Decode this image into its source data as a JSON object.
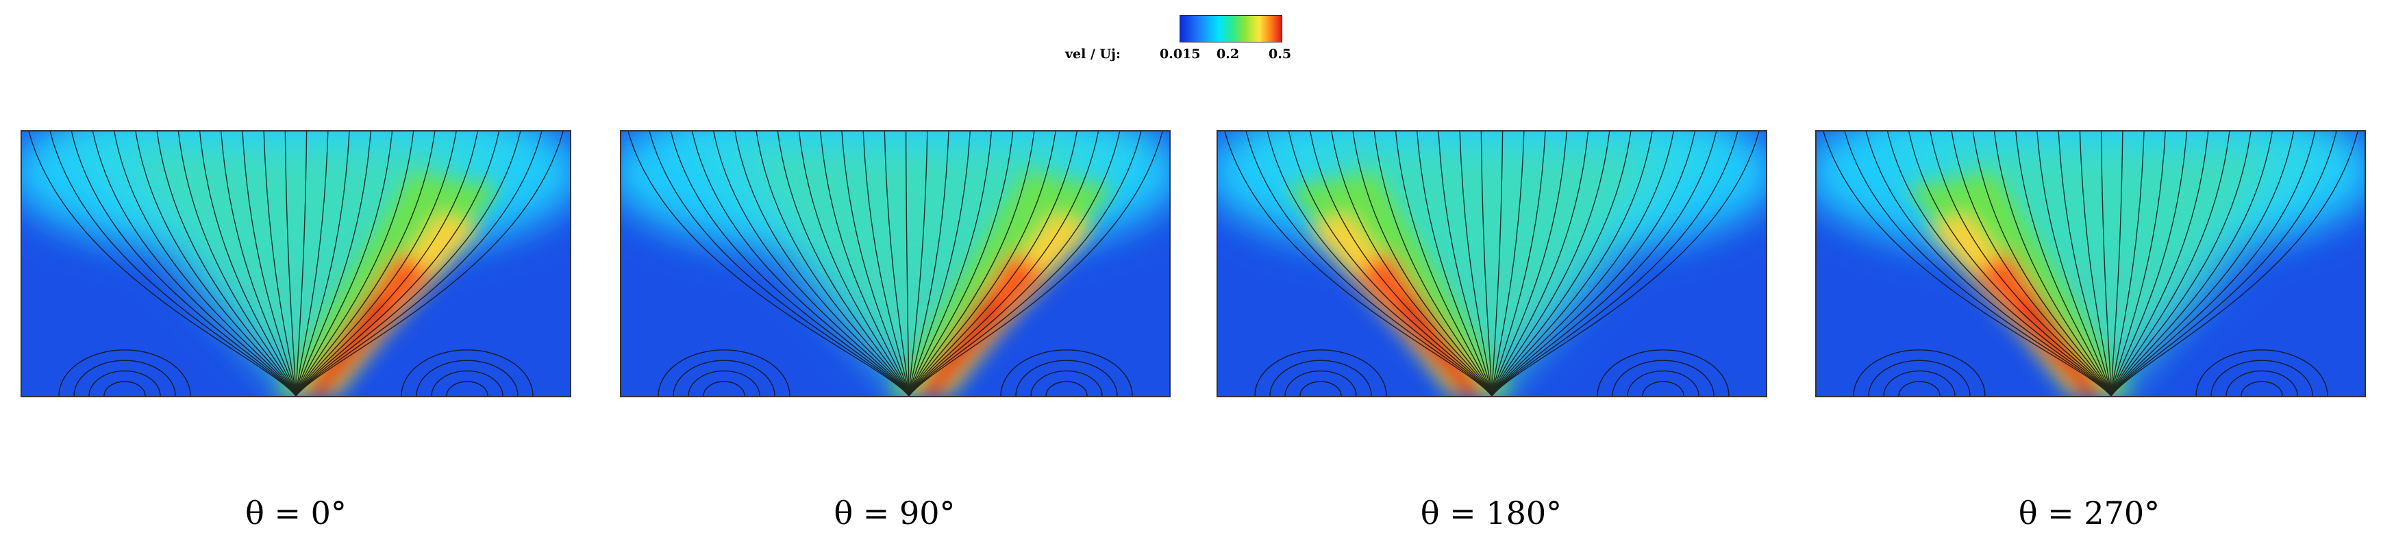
{
  "colorbar": {
    "label": "vel / Uj:",
    "ticks": [
      "0.015",
      "0.2",
      "0.5"
    ],
    "colors": [
      "#0a2bd6",
      "#1e7bff",
      "#00e5ff",
      "#2fe88a",
      "#8ee53a",
      "#ffe63a",
      "#ff7a1a",
      "#e01818"
    ]
  },
  "panels": [
    {
      "caption": "θ = 0°",
      "angle": 0,
      "jet_dir": "right"
    },
    {
      "caption": "θ = 90°",
      "angle": 90,
      "jet_dir": "right"
    },
    {
      "caption": "θ = 180°",
      "angle": 180,
      "jet_dir": "left"
    },
    {
      "caption": "θ = 270°",
      "angle": 270,
      "jet_dir": "left"
    }
  ]
}
